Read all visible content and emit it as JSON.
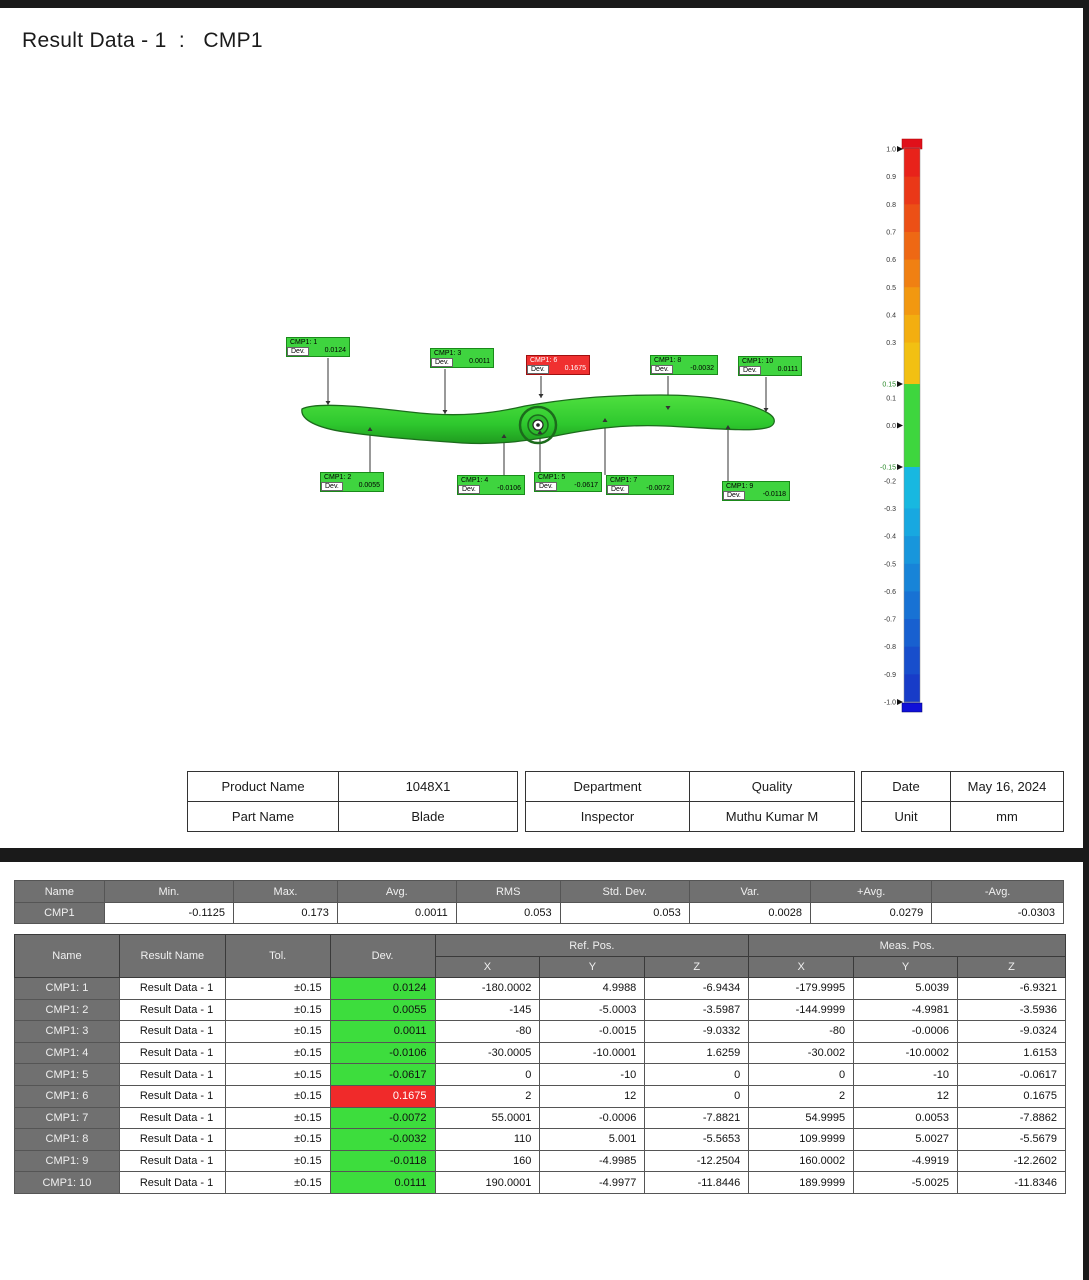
{
  "page": {
    "title": "Result Data - 1  :   CMP1"
  },
  "colors": {
    "ok": "#3ddd3d",
    "fail": "#f02a2a",
    "header_gray": "#707070"
  },
  "model": {
    "callouts": [
      {
        "name": "CMP1: 1",
        "dev_label": "Dev.",
        "dev": "0.0124",
        "status": "ok"
      },
      {
        "name": "CMP1: 2",
        "dev_label": "Dev.",
        "dev": "0.0055",
        "status": "ok"
      },
      {
        "name": "CMP1: 3",
        "dev_label": "Dev.",
        "dev": "0.0011",
        "status": "ok"
      },
      {
        "name": "CMP1: 4",
        "dev_label": "Dev.",
        "dev": "-0.0106",
        "status": "ok"
      },
      {
        "name": "CMP1: 5",
        "dev_label": "Dev.",
        "dev": "-0.0617",
        "status": "ok"
      },
      {
        "name": "CMP1: 6",
        "dev_label": "Dev.",
        "dev": "0.1675",
        "status": "fail"
      },
      {
        "name": "CMP1: 7",
        "dev_label": "Dev.",
        "dev": "-0.0072",
        "status": "ok"
      },
      {
        "name": "CMP1: 8",
        "dev_label": "Dev.",
        "dev": "-0.0032",
        "status": "ok"
      },
      {
        "name": "CMP1: 9",
        "dev_label": "Dev.",
        "dev": "-0.0118",
        "status": "ok"
      },
      {
        "name": "CMP1: 10",
        "dev_label": "Dev.",
        "dev": "0.0111",
        "status": "ok"
      }
    ]
  },
  "scale": {
    "max": 1.0,
    "min": -1.0,
    "tol_upper": 0.15,
    "tol_lower": -0.15,
    "labels": [
      "1.0",
      "0.9",
      "0.8",
      "0.7",
      "0.6",
      "0.5",
      "0.4",
      "0.3",
      "0.15",
      "0.1",
      "0.0",
      "-0.15",
      "-0.2",
      "-0.3",
      "-0.4",
      "-0.5",
      "-0.6",
      "-0.7",
      "-0.8",
      "-0.9",
      "-1.0"
    ],
    "label_values": [
      1.0,
      0.9,
      0.8,
      0.7,
      0.6,
      0.5,
      0.4,
      0.3,
      0.15,
      0.1,
      0.0,
      -0.15,
      -0.2,
      -0.3,
      -0.4,
      -0.5,
      -0.6,
      -0.7,
      -0.8,
      -0.9,
      -1.0
    ]
  },
  "info": {
    "product_name_label": "Product Name",
    "product_name": "1048X1",
    "part_name_label": "Part Name",
    "part_name": "Blade",
    "department_label": "Department",
    "department": "Quality",
    "inspector_label": "Inspector",
    "inspector": "Muthu Kumar M",
    "date_label": "Date",
    "date": "May 16, 2024",
    "unit_label": "Unit",
    "unit": "mm"
  },
  "stats": {
    "headers": [
      "Name",
      "Min.",
      "Max.",
      "Avg.",
      "RMS",
      "Std. Dev.",
      "Var.",
      "+Avg.",
      "-Avg."
    ],
    "row": [
      "CMP1",
      "-0.1125",
      "0.173",
      "0.0011",
      "0.053",
      "0.053",
      "0.0028",
      "0.0279",
      "-0.0303"
    ]
  },
  "points": {
    "headers": {
      "name": "Name",
      "result_name": "Result Name",
      "tol": "Tol.",
      "dev": "Dev.",
      "ref_pos": "Ref. Pos.",
      "meas_pos": "Meas. Pos.",
      "x": "X",
      "y": "Y",
      "z": "Z"
    },
    "rows": [
      {
        "name": "CMP1: 1",
        "result": "Result Data - 1",
        "tol": "±0.15",
        "dev": "0.0124",
        "status": "ok",
        "rx": "-180.0002",
        "ry": "4.9988",
        "rz": "-6.9434",
        "mx": "-179.9995",
        "my": "5.0039",
        "mz": "-6.9321"
      },
      {
        "name": "CMP1: 2",
        "result": "Result Data - 1",
        "tol": "±0.15",
        "dev": "0.0055",
        "status": "ok",
        "rx": "-145",
        "ry": "-5.0003",
        "rz": "-3.5987",
        "mx": "-144.9999",
        "my": "-4.9981",
        "mz": "-3.5936"
      },
      {
        "name": "CMP1: 3",
        "result": "Result Data - 1",
        "tol": "±0.15",
        "dev": "0.0011",
        "status": "ok",
        "rx": "-80",
        "ry": "-0.0015",
        "rz": "-9.0332",
        "mx": "-80",
        "my": "-0.0006",
        "mz": "-9.0324"
      },
      {
        "name": "CMP1: 4",
        "result": "Result Data - 1",
        "tol": "±0.15",
        "dev": "-0.0106",
        "status": "ok",
        "rx": "-30.0005",
        "ry": "-10.0001",
        "rz": "1.6259",
        "mx": "-30.002",
        "my": "-10.0002",
        "mz": "1.6153"
      },
      {
        "name": "CMP1: 5",
        "result": "Result Data - 1",
        "tol": "±0.15",
        "dev": "-0.0617",
        "status": "ok",
        "rx": "0",
        "ry": "-10",
        "rz": "0",
        "mx": "0",
        "my": "-10",
        "mz": "-0.0617"
      },
      {
        "name": "CMP1: 6",
        "result": "Result Data - 1",
        "tol": "±0.15",
        "dev": "0.1675",
        "status": "fail",
        "rx": "2",
        "ry": "12",
        "rz": "0",
        "mx": "2",
        "my": "12",
        "mz": "0.1675"
      },
      {
        "name": "CMP1: 7",
        "result": "Result Data - 1",
        "tol": "±0.15",
        "dev": "-0.0072",
        "status": "ok",
        "rx": "55.0001",
        "ry": "-0.0006",
        "rz": "-7.8821",
        "mx": "54.9995",
        "my": "0.0053",
        "mz": "-7.8862"
      },
      {
        "name": "CMP1: 8",
        "result": "Result Data - 1",
        "tol": "±0.15",
        "dev": "-0.0032",
        "status": "ok",
        "rx": "110",
        "ry": "5.001",
        "rz": "-5.5653",
        "mx": "109.9999",
        "my": "5.0027",
        "mz": "-5.5679"
      },
      {
        "name": "CMP1: 9",
        "result": "Result Data - 1",
        "tol": "±0.15",
        "dev": "-0.0118",
        "status": "ok",
        "rx": "160",
        "ry": "-4.9985",
        "rz": "-12.2504",
        "mx": "160.0002",
        "my": "-4.9919",
        "mz": "-12.2602"
      },
      {
        "name": "CMP1: 10",
        "result": "Result Data - 1",
        "tol": "±0.15",
        "dev": "0.0111",
        "status": "ok",
        "rx": "190.0001",
        "ry": "-4.9977",
        "rz": "-11.8446",
        "mx": "189.9999",
        "my": "-5.0025",
        "mz": "-11.8346"
      }
    ]
  }
}
